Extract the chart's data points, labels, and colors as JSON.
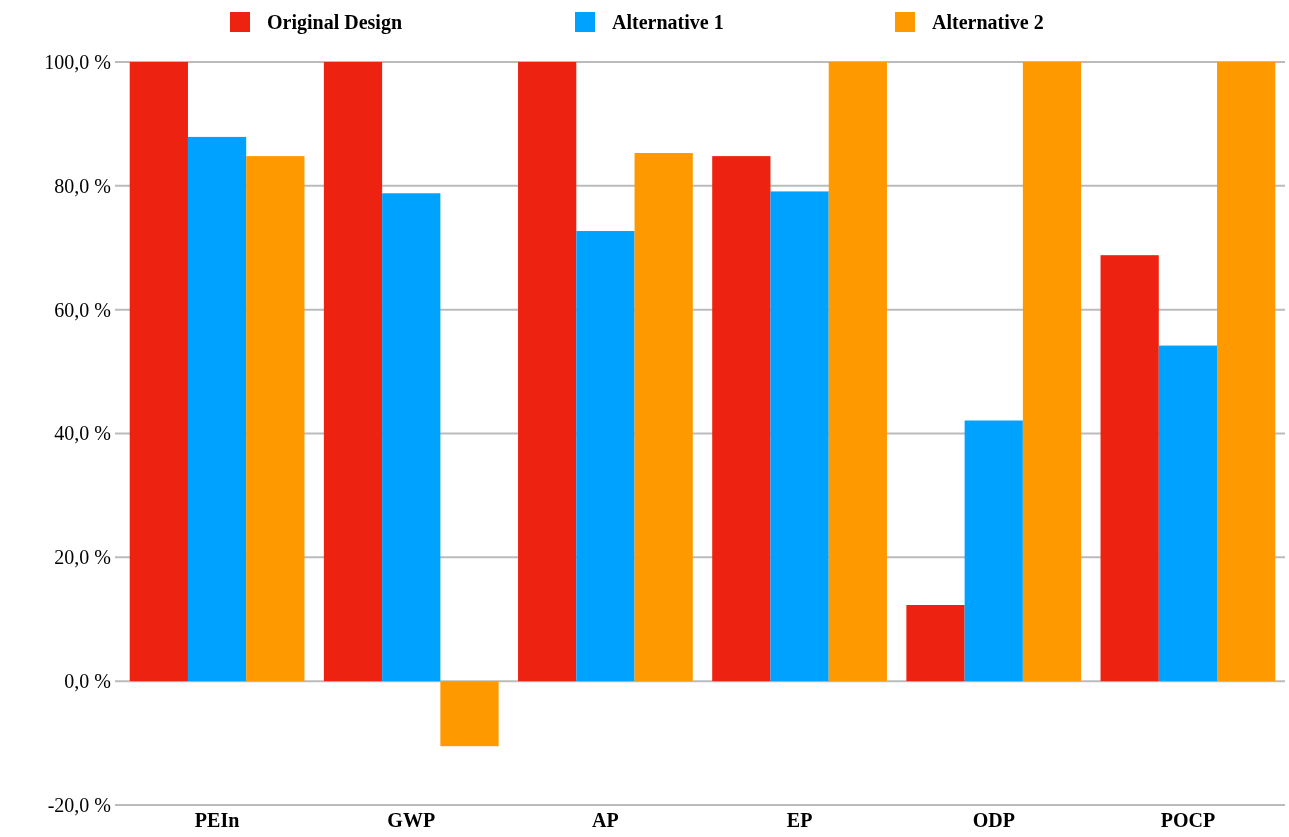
{
  "chart_data": {
    "type": "bar",
    "categories": [
      "PEIn",
      "GWP",
      "AP",
      "EP",
      "ODP",
      "POCP"
    ],
    "series": [
      {
        "name": "Original Design",
        "color": "#ee2211",
        "values": [
          100,
          100,
          100,
          84.8,
          12.3,
          68.8
        ]
      },
      {
        "name": "Alternative 1",
        "color": "#00a2ff",
        "values": [
          87.9,
          78.8,
          72.7,
          79.1,
          42.1,
          54.2
        ]
      },
      {
        "name": "Alternative 2",
        "color": "#ff9900",
        "values": [
          84.8,
          -10.5,
          85.3,
          100,
          100,
          100
        ]
      }
    ],
    "ylim": [
      -20,
      100
    ],
    "yticks": [
      {
        "value": -20,
        "label": "-20,0 %"
      },
      {
        "value": 0,
        "label": "0,0 %"
      },
      {
        "value": 20,
        "label": "20,0 %"
      },
      {
        "value": 40,
        "label": "40,0 %"
      },
      {
        "value": 60,
        "label": "60,0 %"
      },
      {
        "value": 80,
        "label": "80,0 %"
      },
      {
        "value": 100,
        "label": "100,0 %"
      }
    ],
    "grid": "y",
    "legend": "top"
  }
}
